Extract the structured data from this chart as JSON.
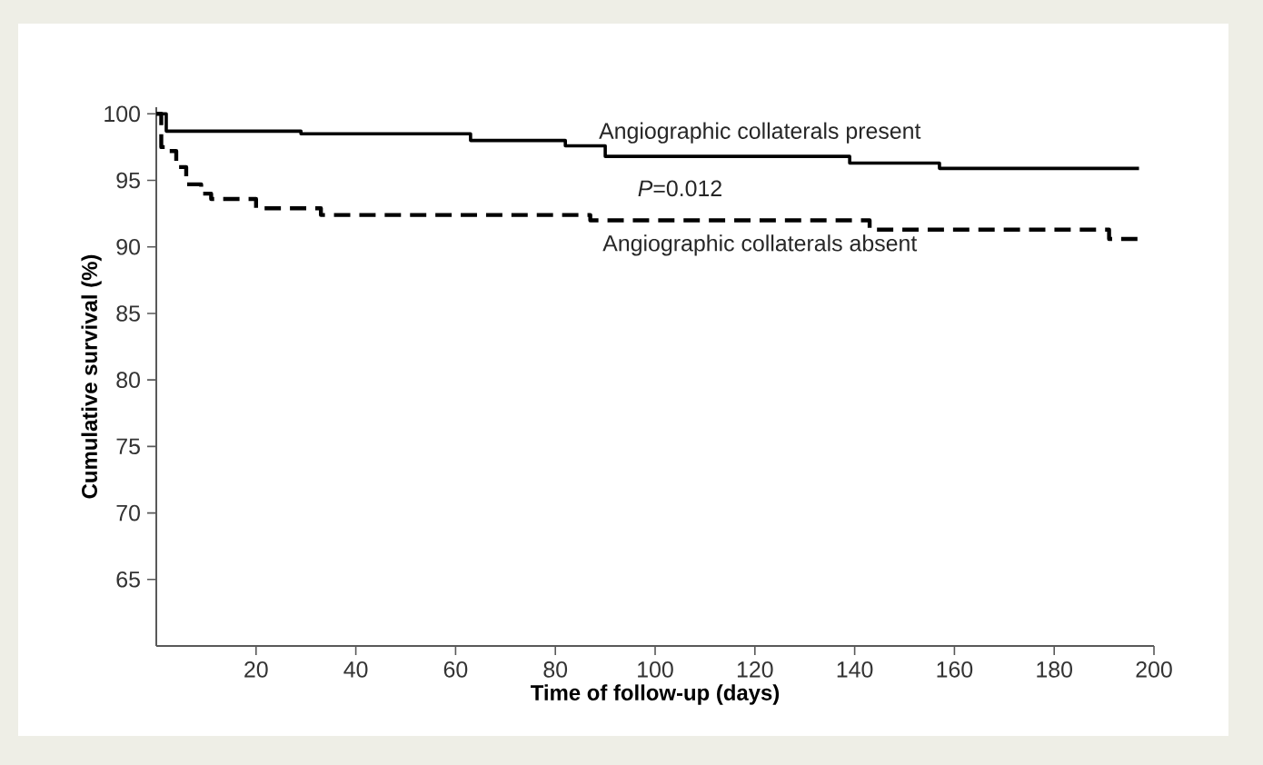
{
  "chart_data": {
    "type": "step",
    "xlabel": "Time of follow-up (days)",
    "ylabel": "Cumulative survival (%)",
    "xlim": [
      0,
      200
    ],
    "ylim": [
      60,
      100.5
    ],
    "xticks": [
      20,
      40,
      60,
      80,
      100,
      120,
      140,
      160,
      180,
      200
    ],
    "yticks": [
      65,
      70,
      75,
      80,
      85,
      90,
      95,
      100
    ],
    "grid": false,
    "legend": false,
    "marker": "none",
    "annotations": [
      "*P*=0.012"
    ],
    "series": [
      {
        "name": "Angiographic collaterals present",
        "color": "#000000",
        "line_style": "solid",
        "x": [
          0,
          2,
          29,
          63,
          82,
          90,
          139,
          157,
          197
        ],
        "values": [
          100,
          98.7,
          98.5,
          98.0,
          97.6,
          96.8,
          96.3,
          95.9,
          95.9
        ]
      },
      {
        "name": "Angiographic collaterals absent",
        "color": "#000000",
        "line_style": "dashed",
        "x": [
          0,
          1,
          2,
          4,
          6,
          9,
          11,
          20,
          33,
          87,
          143,
          191,
          197
        ],
        "values": [
          100,
          97.5,
          97.2,
          96.0,
          94.7,
          94.0,
          93.6,
          92.9,
          92.4,
          92.0,
          91.3,
          90.6,
          90.6
        ]
      }
    ]
  }
}
